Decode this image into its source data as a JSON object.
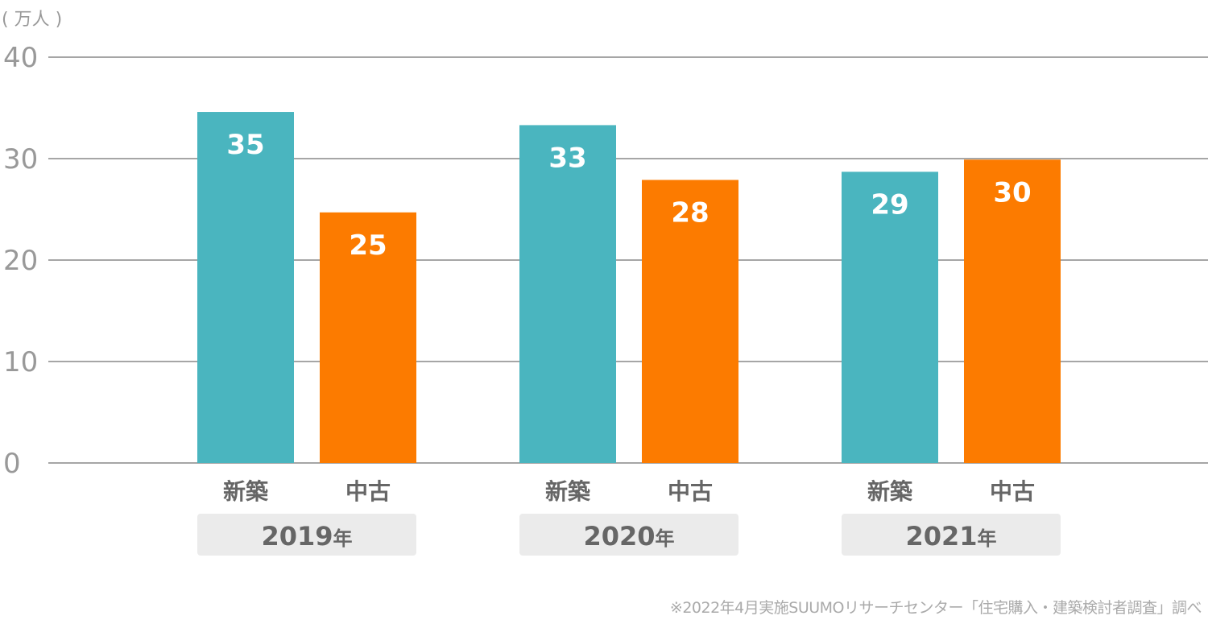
{
  "chart_data": {
    "type": "bar",
    "unit_label": "( 万人 )",
    "ylim": [
      0,
      40
    ],
    "yticks": [
      0,
      10,
      20,
      30,
      40
    ],
    "grid": true,
    "groups": [
      {
        "year": "2019",
        "suffix": "年",
        "bars": [
          {
            "category": "新築",
            "value": 34.6,
            "label": "35"
          },
          {
            "category": "中古",
            "value": 24.7,
            "label": "25"
          }
        ]
      },
      {
        "year": "2020",
        "suffix": "年",
        "bars": [
          {
            "category": "新築",
            "value": 33.3,
            "label": "33"
          },
          {
            "category": "中古",
            "value": 27.9,
            "label": "28"
          }
        ]
      },
      {
        "year": "2021",
        "suffix": "年",
        "bars": [
          {
            "category": "新築",
            "value": 28.7,
            "label": "29"
          },
          {
            "category": "中古",
            "value": 29.9,
            "label": "30"
          }
        ]
      }
    ],
    "colors": {
      "新築": "#4ab5bf",
      "中古": "#fc7b00",
      "grid": "#a6a6a6",
      "axis_text": "#999999",
      "category_text": "#666666",
      "year_box": "#ebebeb"
    },
    "footnote": "※2022年4月実施SUUMOリサーチセンター「住宅購入・建築検討者調査」調べ"
  }
}
